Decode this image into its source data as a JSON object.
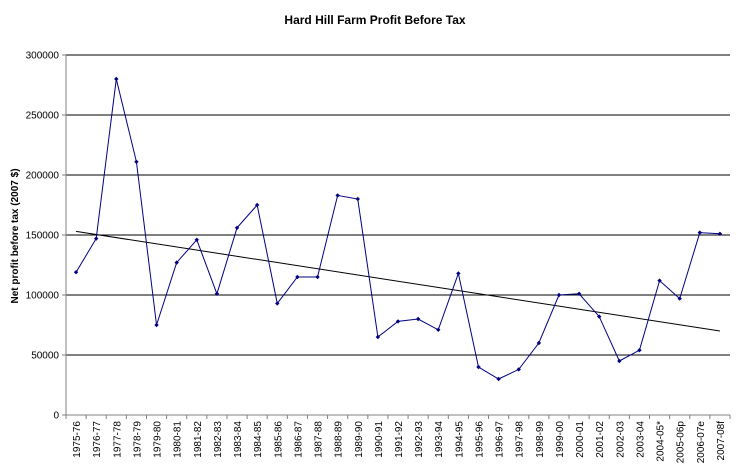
{
  "chart_data": {
    "type": "line",
    "title": "Hard Hill Farm Profit Before Tax",
    "xlabel": "",
    "ylabel": "Net profit before tax (2007 $)",
    "ylim": [
      0,
      300000
    ],
    "yticks": [
      0,
      50000,
      100000,
      150000,
      200000,
      250000,
      300000
    ],
    "grid": true,
    "legend": "none",
    "categories": [
      "1975-76",
      "1976-77",
      "1977-78",
      "1978-79",
      "1979-80",
      "1980-81",
      "1981-82",
      "1982-83",
      "1983-84",
      "1984-85",
      "1985-86",
      "1986-87",
      "1987-88",
      "1988-89",
      "1989-90",
      "1990-91",
      "1991-92",
      "1992-93",
      "1993-94",
      "1994-95",
      "1995-96",
      "1996-97",
      "1997-98",
      "1998-99",
      "1999-00",
      "2000-01",
      "2001-02",
      "2002-03",
      "2003-04",
      "2004-05*",
      "2005-06p",
      "2006-07e",
      "2007-08f"
    ],
    "series": [
      {
        "values": [
          119000,
          147000,
          280000,
          211000,
          75000,
          127000,
          146000,
          101000,
          156000,
          175000,
          93000,
          115000,
          115000,
          183000,
          180000,
          65000,
          78000,
          80000,
          71000,
          118000,
          40000,
          30000,
          38000,
          60000,
          100000,
          101000,
          82000,
          45000,
          54000,
          112000,
          97000,
          152000,
          151000
        ]
      }
    ],
    "trendline": {
      "start": 153000,
      "end": 70000
    },
    "colors": {
      "line": "#000080",
      "marker": "#000080",
      "trend": "#000000",
      "grid": "#000000",
      "axis": "#808080"
    }
  }
}
